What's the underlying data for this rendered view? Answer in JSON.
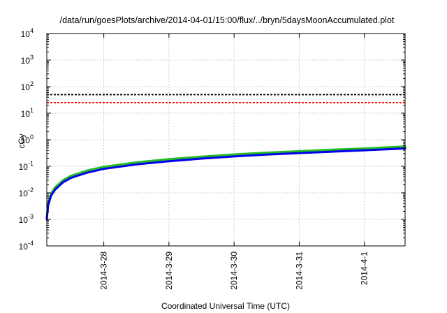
{
  "chart_data": {
    "type": "line",
    "title": "/data/run/goesPlots/archive/2014-04-01/15:00/flux/../bryn/5daysMoonAccumulated.plot",
    "xlabel": "Coordinated Universal Time (UTC)",
    "ylabel": "cGy",
    "yscale": "log",
    "ylim": [
      "1e-4",
      "1e4"
    ],
    "xlim": [
      "2014-03-27T03:00",
      "2014-04-01T15:00"
    ],
    "grid": true,
    "y_ticks": [
      {
        "base": "10",
        "exp": "-4",
        "value": 0.0001
      },
      {
        "base": "10",
        "exp": "-3",
        "value": 0.001
      },
      {
        "base": "10",
        "exp": "-2",
        "value": 0.01
      },
      {
        "base": "10",
        "exp": "-1",
        "value": 0.1
      },
      {
        "base": "10",
        "exp": "0",
        "value": 1
      },
      {
        "base": "10",
        "exp": "1",
        "value": 10
      },
      {
        "base": "10",
        "exp": "2",
        "value": 100
      },
      {
        "base": "10",
        "exp": "3",
        "value": 1000
      },
      {
        "base": "10",
        "exp": "4",
        "value": 10000
      }
    ],
    "x_ticks": [
      {
        "label": "2014-3-28",
        "date": "2014-03-28T00:00"
      },
      {
        "label": "2014-3-29",
        "date": "2014-03-29T00:00"
      },
      {
        "label": "2014-3-30",
        "date": "2014-03-30T00:00"
      },
      {
        "label": "2014-3-31",
        "date": "2014-03-31T00:00"
      },
      {
        "label": "2014-4-1",
        "date": "2014-04-01T00:00"
      }
    ],
    "reference_lines": [
      {
        "value": 50,
        "color": "#000000",
        "style": "dashed"
      },
      {
        "value": 25,
        "color": "#ff0000",
        "style": "dashed"
      }
    ],
    "series": [
      {
        "color": "#22bb22",
        "x": [
          "2014-03-27T03:00",
          "2014-03-27T03:30",
          "2014-03-27T04:30",
          "2014-03-27T06:00",
          "2014-03-27T09:00",
          "2014-03-27T12:00",
          "2014-03-27T18:00",
          "2014-03-28T00:00",
          "2014-03-28T12:00",
          "2014-03-29T00:00",
          "2014-03-29T12:00",
          "2014-03-30T00:00",
          "2014-03-30T12:00",
          "2014-03-31T00:00",
          "2014-03-31T12:00",
          "2014-04-01T00:00",
          "2014-04-01T15:00"
        ],
        "values": [
          0.0012,
          0.004,
          0.009,
          0.016,
          0.03,
          0.044,
          0.07,
          0.095,
          0.14,
          0.185,
          0.23,
          0.28,
          0.325,
          0.37,
          0.42,
          0.47,
          0.56
        ]
      },
      {
        "color": "#0000ee",
        "x": [
          "2014-03-27T03:00",
          "2014-03-27T03:30",
          "2014-03-27T04:30",
          "2014-03-27T06:00",
          "2014-03-27T09:00",
          "2014-03-27T12:00",
          "2014-03-27T18:00",
          "2014-03-28T00:00",
          "2014-03-28T12:00",
          "2014-03-29T00:00",
          "2014-03-29T12:00",
          "2014-03-30T00:00",
          "2014-03-30T12:00",
          "2014-03-31T00:00",
          "2014-03-31T12:00",
          "2014-04-01T00:00",
          "2014-04-01T15:00"
        ],
        "values": [
          0.001,
          0.0033,
          0.0075,
          0.013,
          0.025,
          0.037,
          0.058,
          0.08,
          0.118,
          0.155,
          0.195,
          0.235,
          0.275,
          0.315,
          0.355,
          0.4,
          0.47
        ]
      }
    ]
  }
}
